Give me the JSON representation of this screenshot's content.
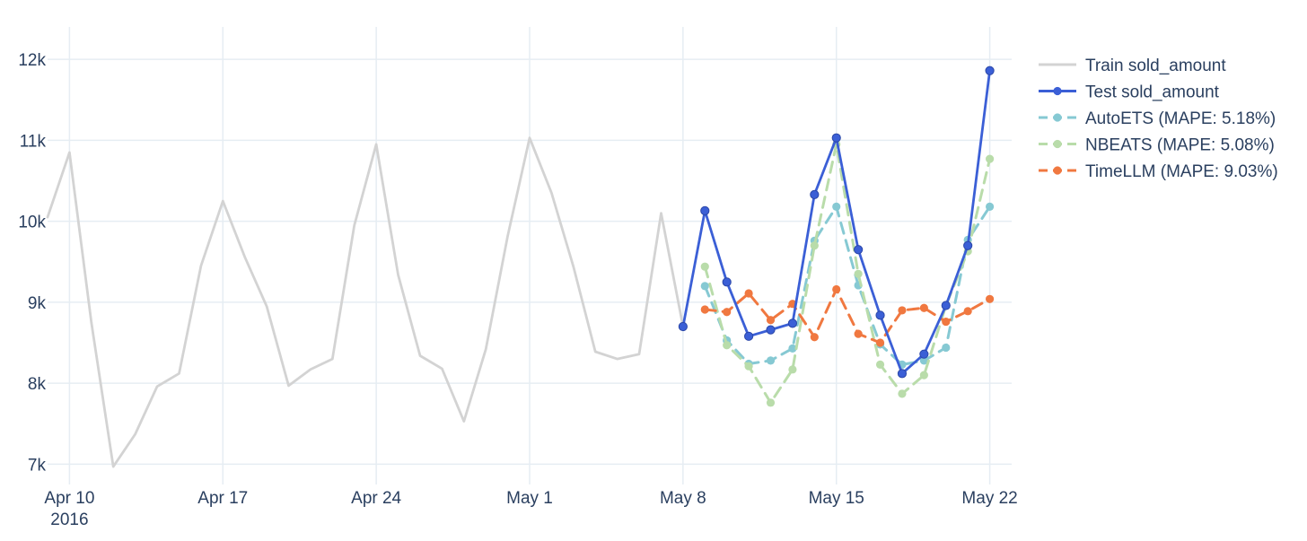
{
  "chart_data": {
    "type": "line",
    "title": "",
    "xlabel": "",
    "ylabel": "",
    "xlim": [
      "2016-04-09",
      "2016-05-23"
    ],
    "ylim": [
      6750,
      12400
    ],
    "grid": true,
    "legend_position": "right",
    "x_ticks": [
      {
        "date": "2016-04-10",
        "label": "Apr 10",
        "sublabel": "2016"
      },
      {
        "date": "2016-04-17",
        "label": "Apr 17"
      },
      {
        "date": "2016-04-24",
        "label": "Apr 24"
      },
      {
        "date": "2016-05-01",
        "label": "May 1"
      },
      {
        "date": "2016-05-08",
        "label": "May 8"
      },
      {
        "date": "2016-05-15",
        "label": "May 15"
      },
      {
        "date": "2016-05-22",
        "label": "May 22"
      }
    ],
    "y_ticks": [
      {
        "value": 7000,
        "label": "7k"
      },
      {
        "value": 8000,
        "label": "8k"
      },
      {
        "value": 9000,
        "label": "9k"
      },
      {
        "value": 10000,
        "label": "10k"
      },
      {
        "value": 11000,
        "label": "11k"
      },
      {
        "value": 12000,
        "label": "12k"
      }
    ],
    "series": [
      {
        "name": "Train sold_amount",
        "color": "#d3d3d3",
        "dash": "solid",
        "markers": false,
        "x": [
          "2016-04-09",
          "2016-04-10",
          "2016-04-11",
          "2016-04-12",
          "2016-04-13",
          "2016-04-14",
          "2016-04-15",
          "2016-04-16",
          "2016-04-17",
          "2016-04-18",
          "2016-04-19",
          "2016-04-20",
          "2016-04-21",
          "2016-04-22",
          "2016-04-23",
          "2016-04-24",
          "2016-04-25",
          "2016-04-26",
          "2016-04-27",
          "2016-04-28",
          "2016-04-29",
          "2016-04-30",
          "2016-05-01",
          "2016-05-02",
          "2016-05-03",
          "2016-05-04",
          "2016-05-05",
          "2016-05-06",
          "2016-05-07",
          "2016-05-08"
        ],
        "y": [
          10050,
          10850,
          8750,
          6970,
          7370,
          7960,
          8120,
          9450,
          10250,
          9560,
          8950,
          7970,
          8170,
          8300,
          9950,
          10950,
          9340,
          8340,
          8180,
          7530,
          8420,
          9820,
          11030,
          10350,
          9440,
          8390,
          8300,
          8360,
          10100,
          8700
        ]
      },
      {
        "name": "Test sold_amount",
        "color": "#3b5fd6",
        "dash": "solid",
        "markers": true,
        "x": [
          "2016-05-08",
          "2016-05-09",
          "2016-05-10",
          "2016-05-11",
          "2016-05-12",
          "2016-05-13",
          "2016-05-14",
          "2016-05-15",
          "2016-05-16",
          "2016-05-17",
          "2016-05-18",
          "2016-05-19",
          "2016-05-20",
          "2016-05-21",
          "2016-05-22"
        ],
        "y": [
          8700,
          10130,
          9250,
          8580,
          8660,
          8740,
          10330,
          11030,
          9650,
          8840,
          8120,
          8360,
          8960,
          9700,
          11860
        ]
      },
      {
        "name": "AutoETS (MAPE: 5.18%)",
        "color": "#86c9d3",
        "dash": "dash",
        "markers": true,
        "x": [
          "2016-05-09",
          "2016-05-10",
          "2016-05-11",
          "2016-05-12",
          "2016-05-13",
          "2016-05-14",
          "2016-05-15",
          "2016-05-16",
          "2016-05-17",
          "2016-05-18",
          "2016-05-19",
          "2016-05-20",
          "2016-05-21",
          "2016-05-22"
        ],
        "y": [
          9200,
          8530,
          8240,
          8280,
          8430,
          9760,
          10180,
          9210,
          8480,
          8230,
          8280,
          8440,
          9770,
          10180
        ]
      },
      {
        "name": "NBEATS (MAPE: 5.08%)",
        "color": "#b9dcaa",
        "dash": "dash",
        "markers": true,
        "x": [
          "2016-05-09",
          "2016-05-10",
          "2016-05-11",
          "2016-05-12",
          "2016-05-13",
          "2016-05-14",
          "2016-05-15",
          "2016-05-16",
          "2016-05-17",
          "2016-05-18",
          "2016-05-19",
          "2016-05-20",
          "2016-05-21",
          "2016-05-22"
        ],
        "y": [
          9440,
          8470,
          8210,
          7760,
          8170,
          9700,
          10950,
          9350,
          8230,
          7870,
          8100,
          8960,
          9630,
          10770
        ]
      },
      {
        "name": "TimeLLM (MAPE: 9.03%)",
        "color": "#f07840",
        "dash": "dash",
        "markers": true,
        "x": [
          "2016-05-09",
          "2016-05-10",
          "2016-05-11",
          "2016-05-12",
          "2016-05-13",
          "2016-05-14",
          "2016-05-15",
          "2016-05-16",
          "2016-05-17",
          "2016-05-18",
          "2016-05-19",
          "2016-05-20",
          "2016-05-21",
          "2016-05-22"
        ],
        "y": [
          8910,
          8880,
          9110,
          8780,
          8980,
          8570,
          9160,
          8610,
          8500,
          8900,
          8930,
          8760,
          8890,
          9040
        ]
      }
    ]
  }
}
